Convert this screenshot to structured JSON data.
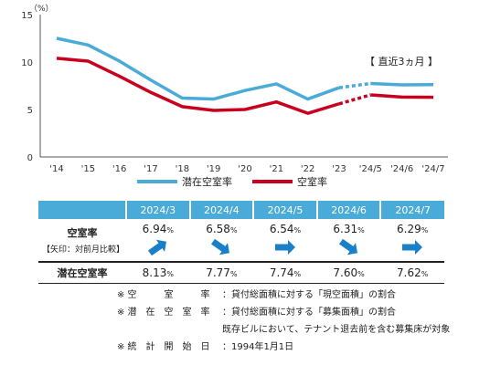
{
  "chart_data": {
    "type": "line",
    "unit_label": "（%）",
    "y_ticks": [
      "0",
      "5",
      "10",
      "15"
    ],
    "ylim": [
      0,
      15
    ],
    "categories": [
      "'14",
      "'15",
      "'16",
      "'17",
      "'18",
      "'19",
      "'20",
      "'21",
      "'22",
      "'23",
      "'24/5",
      "'24/6",
      "'24/7"
    ],
    "series": [
      {
        "name": "潜在空室率",
        "color": "#4aabd8",
        "values": [
          12.5,
          11.8,
          10.1,
          8.1,
          6.2,
          6.1,
          7.0,
          7.7,
          6.1,
          7.3,
          7.74,
          7.6,
          7.62
        ]
      },
      {
        "name": "空室率",
        "color": "#c8001e",
        "values": [
          10.4,
          10.1,
          8.5,
          6.8,
          5.3,
          4.9,
          5.0,
          5.8,
          4.6,
          5.6,
          6.54,
          6.31,
          6.29
        ]
      }
    ],
    "annotation": "【 直近3ヵ月 】"
  },
  "table": {
    "months": [
      "2024/3",
      "2024/4",
      "2024/5",
      "2024/6",
      "2024/7"
    ],
    "vacancy_label": "空室率",
    "arrow_note": "【矢印：対前月比較】",
    "latent_label": "潜在空室率",
    "vacancy": [
      {
        "num": "6.94",
        "pct": "%",
        "arrow": "up"
      },
      {
        "num": "6.58",
        "pct": "%",
        "arrow": "down"
      },
      {
        "num": "6.54",
        "pct": "%",
        "arrow": "flat"
      },
      {
        "num": "6.31",
        "pct": "%",
        "arrow": "down"
      },
      {
        "num": "6.29",
        "pct": "%",
        "arrow": "flat"
      }
    ],
    "latent": [
      {
        "num": "8.13",
        "pct": "%"
      },
      {
        "num": "7.77",
        "pct": "%"
      },
      {
        "num": "7.74",
        "pct": "%"
      },
      {
        "num": "7.60",
        "pct": "%"
      },
      {
        "num": "7.62",
        "pct": "%"
      }
    ],
    "arrow_color": "#1a7fc9"
  },
  "notes": {
    "line1_key": "※ 空　　　室　　　率",
    "line1_text": "：貸付総面積に対する「現空面積」の割合",
    "line2_key": "※ 潜　在　空　室　率",
    "line2_text": "：貸付総面積に対する「募集面積」の割合",
    "line3_text": "既存ビルにおいて、テナント退去前を含む募集床が対象",
    "line4_key": "※ 統　計　開　始　日",
    "line4_text": "：1994年1月1日"
  }
}
